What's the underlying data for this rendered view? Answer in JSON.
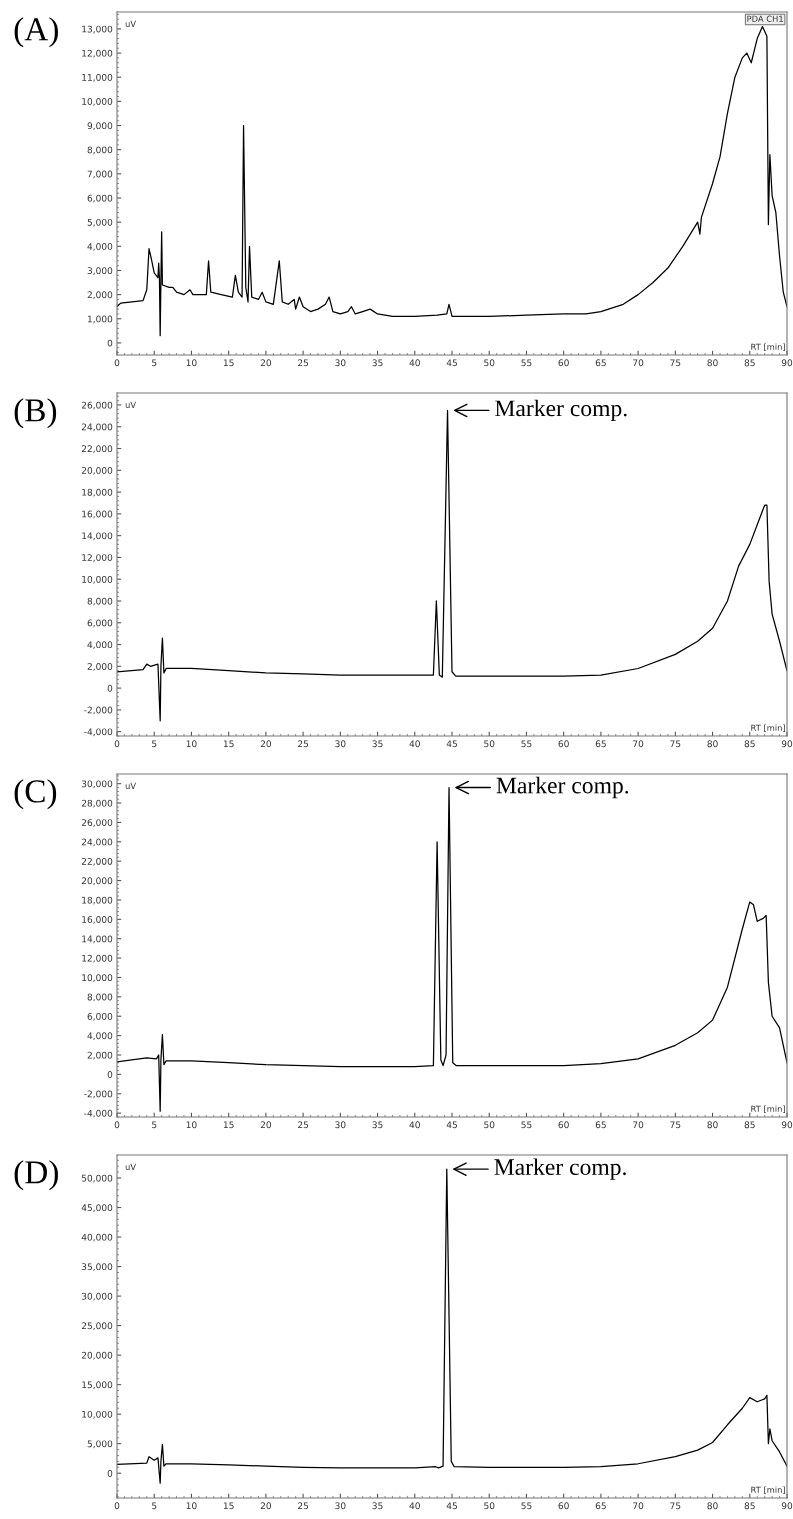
{
  "chart_data": [
    {
      "type": "line",
      "title": "(A)",
      "ylabel": "uV",
      "xlabel": "RT [min]",
      "grid": false,
      "marker": "none",
      "line_style": "solid",
      "xlim": [
        0,
        90
      ],
      "xticks": [
        0,
        5,
        10,
        15,
        20,
        25,
        30,
        35,
        40,
        45,
        50,
        55,
        60,
        65,
        70,
        75,
        80,
        85,
        90
      ],
      "ylim": [
        -500,
        13700
      ],
      "yticks": [
        {
          "value": 0,
          "label": "0"
        },
        {
          "value": 1000,
          "label": "1,000"
        },
        {
          "value": 2000,
          "label": "2,000"
        },
        {
          "value": 3000,
          "label": "3,000"
        },
        {
          "value": 4000,
          "label": "4,000"
        },
        {
          "value": 5000,
          "label": "5,000"
        },
        {
          "value": 6000,
          "label": "6,000"
        },
        {
          "value": 7000,
          "label": "7,000"
        },
        {
          "value": 8000,
          "label": "8,000"
        },
        {
          "value": 9000,
          "label": "9,000"
        },
        {
          "value": 10000,
          "label": "10,000"
        },
        {
          "value": 11000,
          "label": "11,000"
        },
        {
          "value": 12000,
          "label": "12,000"
        },
        {
          "value": 13000,
          "label": "13,000"
        }
      ],
      "annotations": [
        "PDA CH1"
      ],
      "x": [
        0,
        0.5,
        3.5,
        4.0,
        4.3,
        4.6,
        5.0,
        5.5,
        5.6,
        5.7,
        5.8,
        5.9,
        6.0,
        6.1,
        7,
        7.5,
        8,
        9,
        9.8,
        10.2,
        12,
        12.3,
        12.6,
        14,
        15.5,
        15.9,
        16.3,
        16.8,
        17.0,
        17.3,
        17.6,
        17.8,
        18.1,
        19,
        19.5,
        20,
        21,
        21.8,
        22.2,
        23,
        23.8,
        24,
        24.5,
        25,
        26,
        27,
        28,
        28.5,
        29,
        30,
        31,
        31.5,
        32,
        33,
        34,
        35,
        37,
        40,
        43,
        44.3,
        44.6,
        45,
        50,
        55,
        60,
        63,
        65,
        68,
        70,
        72,
        74,
        76,
        78,
        78.3,
        78.5,
        80,
        81,
        82,
        83,
        84,
        84.6,
        85.2,
        86,
        86.7,
        87.3,
        87.5,
        87.7,
        88,
        88.5,
        89,
        89.5,
        90
      ],
      "series": [
        {
          "color": "#000000",
          "values": [
            1500,
            1650,
            1750,
            2200,
            3900,
            3500,
            2900,
            2700,
            3300,
            2700,
            300,
            2600,
            4600,
            2400,
            2300,
            2300,
            2100,
            2000,
            2200,
            2000,
            2000,
            3400,
            2100,
            2000,
            1900,
            2800,
            2100,
            1900,
            9000,
            2300,
            1700,
            4000,
            1900,
            1800,
            2100,
            1700,
            1600,
            3400,
            1700,
            1600,
            1800,
            1400,
            1900,
            1500,
            1300,
            1400,
            1600,
            1900,
            1300,
            1200,
            1300,
            1500,
            1200,
            1300,
            1400,
            1200,
            1100,
            1100,
            1150,
            1200,
            1600,
            1100,
            1100,
            1150,
            1200,
            1200,
            1300,
            1600,
            2000,
            2500,
            3100,
            4000,
            5000,
            4500,
            5200,
            6600,
            7700,
            9500,
            11000,
            11800,
            12000,
            11600,
            12600,
            13100,
            12700,
            4900,
            7800,
            6100,
            5400,
            3600,
            2100,
            1500
          ]
        }
      ]
    },
    {
      "type": "line",
      "title": "(B)",
      "ylabel": "uV",
      "xlabel": "RT [min]",
      "grid": false,
      "marker": "none",
      "line_style": "solid",
      "xlim": [
        0,
        90
      ],
      "xticks": [
        0,
        5,
        10,
        15,
        20,
        25,
        30,
        35,
        40,
        45,
        50,
        55,
        60,
        65,
        70,
        75,
        80,
        85,
        90
      ],
      "ylim": [
        -4400,
        27100
      ],
      "yticks": [
        {
          "value": -4000,
          "label": "-4,000"
        },
        {
          "value": -2000,
          "label": "-2,000"
        },
        {
          "value": 0,
          "label": "0"
        },
        {
          "value": 2000,
          "label": "2,000"
        },
        {
          "value": 4000,
          "label": "4,000"
        },
        {
          "value": 6000,
          "label": "6,000"
        },
        {
          "value": 8000,
          "label": "8,000"
        },
        {
          "value": 10000,
          "label": "10,000"
        },
        {
          "value": 12000,
          "label": "12,000"
        },
        {
          "value": 14000,
          "label": "14,000"
        },
        {
          "value": 16000,
          "label": "16,000"
        },
        {
          "value": 18000,
          "label": "18,000"
        },
        {
          "value": 20000,
          "label": "20,000"
        },
        {
          "value": 22000,
          "label": "22,000"
        },
        {
          "value": 24000,
          "label": "24,000"
        },
        {
          "value": 26000,
          "label": "26,000"
        }
      ],
      "annotations": [
        {
          "text": "Marker comp.",
          "x": 44.4,
          "y": 25500
        }
      ],
      "x": [
        0,
        3.5,
        4,
        4.5,
        5.5,
        5.8,
        5.9,
        6.1,
        6.3,
        6.6,
        10,
        15,
        20,
        25,
        30,
        35,
        40,
        42.5,
        42.9,
        43.3,
        43.7,
        44.4,
        45.0,
        45.5,
        50,
        55,
        60,
        65,
        70,
        75,
        78,
        80,
        82,
        83.5,
        85,
        86,
        87,
        87.3,
        87.6,
        88,
        89,
        90
      ],
      "series": [
        {
          "color": "#000000",
          "values": [
            1500,
            1700,
            2200,
            2000,
            2200,
            -3000,
            2000,
            4600,
            1400,
            1800,
            1800,
            1600,
            1400,
            1300,
            1200,
            1200,
            1200,
            1200,
            8000,
            1200,
            1000,
            25500,
            1500,
            1100,
            1100,
            1100,
            1100,
            1200,
            1800,
            3100,
            4300,
            5500,
            8000,
            11200,
            13200,
            15000,
            16800,
            16800,
            9800,
            6800,
            4300,
            1600
          ]
        }
      ]
    },
    {
      "type": "line",
      "title": "(C)",
      "ylabel": "uV",
      "xlabel": "RT [min]",
      "grid": false,
      "marker": "none",
      "line_style": "solid",
      "xlim": [
        0,
        90
      ],
      "xticks": [
        0,
        5,
        10,
        15,
        20,
        25,
        30,
        35,
        40,
        45,
        50,
        55,
        60,
        65,
        70,
        75,
        80,
        85,
        90
      ],
      "ylim": [
        -4400,
        31000
      ],
      "yticks": [
        {
          "value": -4000,
          "label": "-4,000"
        },
        {
          "value": -2000,
          "label": "-2,000"
        },
        {
          "value": 0,
          "label": "0"
        },
        {
          "value": 2000,
          "label": "2,000"
        },
        {
          "value": 4000,
          "label": "4,000"
        },
        {
          "value": 6000,
          "label": "6,000"
        },
        {
          "value": 8000,
          "label": "8,000"
        },
        {
          "value": 10000,
          "label": "10,000"
        },
        {
          "value": 12000,
          "label": "12,000"
        },
        {
          "value": 14000,
          "label": "14,000"
        },
        {
          "value": 16000,
          "label": "16,000"
        },
        {
          "value": 18000,
          "label": "18,000"
        },
        {
          "value": 20000,
          "label": "20,000"
        },
        {
          "value": 22000,
          "label": "22,000"
        },
        {
          "value": 24000,
          "label": "24,000"
        },
        {
          "value": 26000,
          "label": "26,000"
        },
        {
          "value": 28000,
          "label": "28,000"
        },
        {
          "value": 30000,
          "label": "30,000"
        }
      ],
      "annotations": [
        {
          "text": "Marker comp.",
          "x": 44.6,
          "y": 29600
        }
      ],
      "x": [
        0,
        4,
        5.3,
        5.6,
        5.8,
        5.9,
        6.1,
        6.3,
        6.6,
        10,
        15,
        20,
        25,
        30,
        35,
        40,
        42.5,
        43.0,
        43.5,
        43.8,
        44.2,
        44.6,
        45.1,
        45.6,
        50,
        55,
        60,
        65,
        70,
        75,
        78,
        80,
        82,
        84,
        85,
        85.5,
        86,
        86.8,
        87.2,
        87.5,
        88,
        89,
        90
      ],
      "series": [
        {
          "color": "#000000",
          "values": [
            1300,
            1700,
            1600,
            2000,
            -3800,
            1500,
            4100,
            1000,
            1400,
            1400,
            1200,
            1000,
            900,
            800,
            800,
            800,
            900,
            24000,
            1500,
            900,
            2000,
            29600,
            1200,
            900,
            900,
            900,
            900,
            1100,
            1600,
            3000,
            4300,
            5600,
            9000,
            15000,
            17800,
            17500,
            15800,
            16100,
            16400,
            9500,
            6000,
            4800,
            1200
          ]
        }
      ]
    },
    {
      "type": "line",
      "title": "(D)",
      "ylabel": "uV",
      "xlabel": "RT [min]",
      "grid": false,
      "marker": "none",
      "line_style": "solid",
      "xlim": [
        0,
        90
      ],
      "xticks": [
        0,
        5,
        10,
        15,
        20,
        25,
        30,
        35,
        40,
        45,
        50,
        55,
        60,
        65,
        70,
        75,
        80,
        85,
        90
      ],
      "ylim": [
        -4200,
        53900
      ],
      "yticks": [
        {
          "value": 0,
          "label": "0"
        },
        {
          "value": 5000,
          "label": "5,000"
        },
        {
          "value": 10000,
          "label": "10,000"
        },
        {
          "value": 15000,
          "label": "15,000"
        },
        {
          "value": 20000,
          "label": "20,000"
        },
        {
          "value": 25000,
          "label": "25,000"
        },
        {
          "value": 30000,
          "label": "30,000"
        },
        {
          "value": 35000,
          "label": "35,000"
        },
        {
          "value": 40000,
          "label": "40,000"
        },
        {
          "value": 45000,
          "label": "45,000"
        },
        {
          "value": 50000,
          "label": "50,000"
        }
      ],
      "annotations": [
        {
          "text": "Marker comp.",
          "x": 44.3,
          "y": 51500
        }
      ],
      "x": [
        0,
        4,
        4.3,
        5,
        5.5,
        5.8,
        5.9,
        6.1,
        6.3,
        6.6,
        10,
        15,
        20,
        25,
        30,
        35,
        40,
        42.8,
        43.2,
        43.8,
        44.3,
        44.9,
        45.3,
        50,
        55,
        60,
        65,
        70,
        75,
        78,
        80,
        82,
        84,
        85,
        86,
        87,
        87.3,
        87.5,
        87.7,
        88,
        89,
        90
      ],
      "series": [
        {
          "color": "#000000",
          "values": [
            1500,
            1700,
            2800,
            2200,
            2600,
            -1700,
            2000,
            4900,
            1200,
            1600,
            1600,
            1400,
            1200,
            1000,
            900,
            900,
            900,
            1100,
            900,
            1200,
            51500,
            2000,
            1100,
            1000,
            1000,
            1000,
            1100,
            1600,
            2800,
            3900,
            5200,
            8200,
            11000,
            12800,
            12100,
            12600,
            13200,
            5000,
            7500,
            5500,
            3600,
            1200
          ]
        }
      ]
    }
  ]
}
